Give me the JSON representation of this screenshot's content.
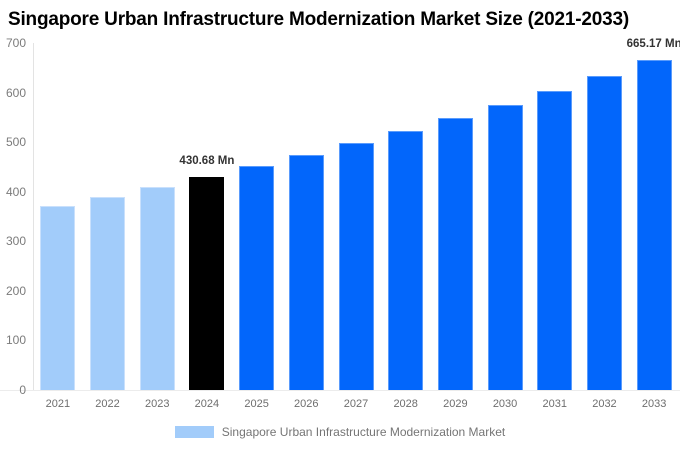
{
  "title": "Singapore Urban Infrastructure Modernization Market Size (2021-2033)",
  "legend": {
    "label": "Singapore Urban Infrastructure Modernization Market",
    "swatch_color": "#a2ccfa"
  },
  "colors": {
    "historical_bar": "#a2ccfa",
    "base_year_bar": "#000000",
    "forecast_bar": "#0266fb",
    "axis_text": "#7b7b7b",
    "value_label_text": "#333333",
    "legend_text": "#757575"
  },
  "chart_data": {
    "type": "bar",
    "title": "Singapore Urban Infrastructure Modernization Market Size (2021-2033)",
    "unit": "Mn",
    "categories": [
      "2021",
      "2022",
      "2023",
      "2024",
      "2025",
      "2026",
      "2027",
      "2028",
      "2029",
      "2030",
      "2031",
      "2032",
      "2033"
    ],
    "values": [
      371,
      390,
      410,
      430.68,
      452,
      474,
      498,
      522,
      548,
      575,
      604,
      634,
      665.17
    ],
    "segments": [
      "historical",
      "historical",
      "historical",
      "base",
      "forecast",
      "forecast",
      "forecast",
      "forecast",
      "forecast",
      "forecast",
      "forecast",
      "forecast",
      "forecast"
    ],
    "data_labels": [
      {
        "index": 3,
        "text": "430.68 Mn"
      },
      {
        "index": 12,
        "text": "665.17 Mn"
      }
    ],
    "ylim": [
      0,
      700
    ],
    "y_ticks": [
      0,
      100,
      200,
      300,
      400,
      500,
      600,
      700
    ],
    "grid": false,
    "legend_position": "bottom",
    "legend_entries": [
      "Singapore Urban Infrastructure Modernization Market"
    ]
  }
}
